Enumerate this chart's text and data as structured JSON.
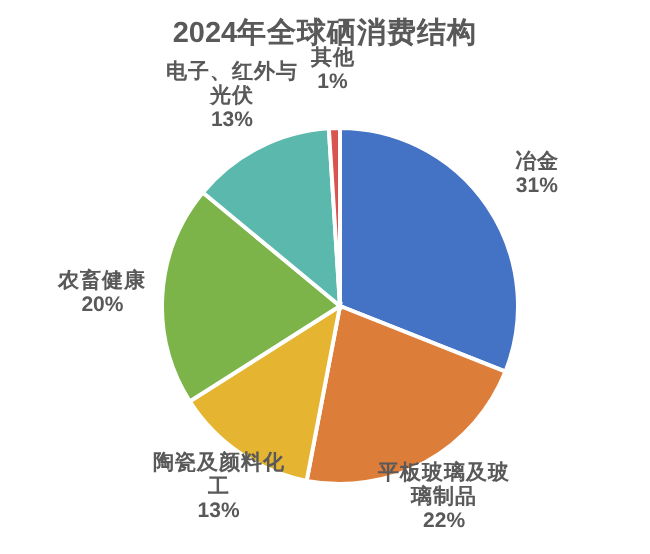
{
  "chart_data": {
    "type": "pie",
    "title": "2024年全球硒消费结构",
    "categories": [
      "冶金",
      "平板玻璃及玻璃制品",
      "陶瓷及颜料化工",
      "农畜健康",
      "电子、红外与光伏",
      "其他"
    ],
    "values": [
      31,
      22,
      13,
      20,
      13,
      1
    ],
    "colors": [
      "#4472c4",
      "#dd7d3a",
      "#e5b532",
      "#7cb44a",
      "#5bb8ac",
      "#d9534f"
    ],
    "value_labels": [
      "31%",
      "22%",
      "13%",
      "20%",
      "13%",
      "1%"
    ]
  }
}
